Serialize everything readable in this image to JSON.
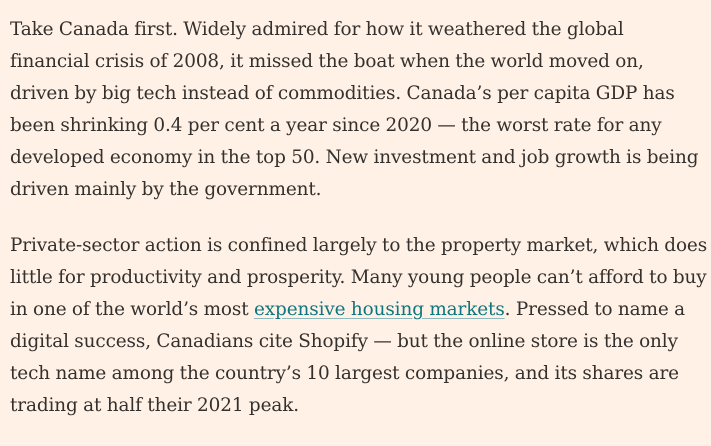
{
  "article": {
    "paragraph_1": "Take Canada first. Widely admired for how it weathered the global financial crisis of 2008, it missed the boat when the world moved on, driven by big tech instead of commodities. Canada’s per capita GDP has been shrinking 0.4 per cent a year since 2020 — the worst rate for any developed economy in the top 50. New investment and job growth is being driven mainly by the government.",
    "paragraph_2": {
      "before_link": "Private-sector action is confined largely to the property market, which does little for productivity and prosperity. Many young people can’t afford to buy in one of the world’s most ",
      "link_text": "expensive housing markets",
      "after_link": ". Pressed to name a digital success, Canadians cite Shopify — but the online store is the only tech name among the country’s 10 largest companies, and its shares are trading at half their 2021 peak."
    },
    "colors": {
      "background": "#fff1e5",
      "text": "#33302e",
      "link": "#0d7680"
    }
  }
}
